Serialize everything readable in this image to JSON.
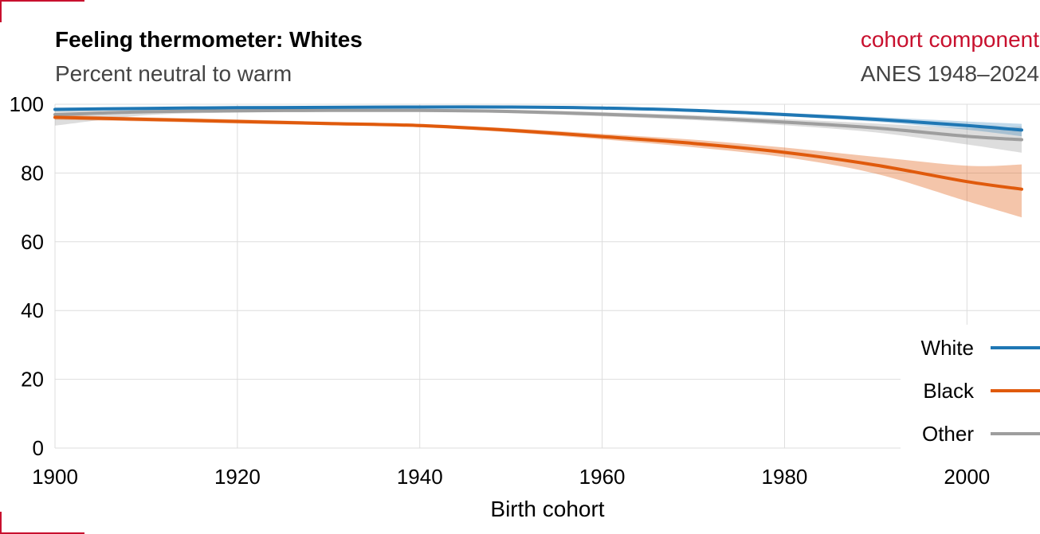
{
  "header": {
    "title": "Feeling thermometer: Whites",
    "subtitle": "Percent neutral to warm",
    "tag": "cohort component",
    "source": "ANES 1948–2024"
  },
  "colors": {
    "accent_red": "#c8102e",
    "White": "#1f77b4",
    "Black": "#e05a0c",
    "Other": "#9e9e9e",
    "grid": "#dddddd"
  },
  "chart_data": {
    "type": "line",
    "title": "Feeling thermometer: Whites",
    "subtitle": "Percent neutral to warm",
    "xlabel": "Birth cohort",
    "ylabel": "",
    "xlim": [
      1900,
      2006
    ],
    "ylim": [
      0,
      100
    ],
    "xticks": [
      1900,
      1920,
      1940,
      1960,
      1980,
      2000
    ],
    "yticks": [
      0,
      20,
      40,
      60,
      80,
      100
    ],
    "grid": true,
    "legend_position": "bottom-right",
    "series": [
      {
        "name": "White",
        "x": [
          1900,
          1910,
          1920,
          1930,
          1940,
          1950,
          1960,
          1970,
          1980,
          1990,
          2000,
          2006
        ],
        "y": [
          98.5,
          98.8,
          99.0,
          99.1,
          99.2,
          99.2,
          98.9,
          98.2,
          97.0,
          95.6,
          93.8,
          92.5
        ],
        "lower": [
          98.0,
          98.5,
          98.7,
          98.9,
          99.0,
          99.0,
          98.6,
          97.8,
          96.5,
          94.9,
          92.6,
          90.7
        ],
        "upper": [
          99.0,
          99.1,
          99.3,
          99.3,
          99.4,
          99.4,
          99.2,
          98.6,
          97.5,
          96.3,
          95.0,
          94.3
        ]
      },
      {
        "name": "Black",
        "x": [
          1900,
          1910,
          1920,
          1930,
          1940,
          1950,
          1960,
          1970,
          1980,
          1990,
          2000,
          2006
        ],
        "y": [
          96.2,
          95.6,
          95.0,
          94.4,
          93.8,
          92.4,
          90.6,
          88.6,
          86.0,
          82.3,
          77.5,
          75.3
        ],
        "lower": [
          95.5,
          95.0,
          94.4,
          93.9,
          93.3,
          91.8,
          89.8,
          87.5,
          84.6,
          79.8,
          71.8,
          67.1
        ],
        "upper": [
          96.9,
          96.2,
          95.6,
          94.9,
          94.3,
          93.0,
          91.4,
          89.7,
          87.4,
          84.7,
          82.1,
          82.5
        ]
      },
      {
        "name": "Other",
        "x": [
          1900,
          1910,
          1920,
          1930,
          1940,
          1950,
          1960,
          1970,
          1980,
          1990,
          2000,
          2006
        ],
        "y": [
          97.0,
          97.8,
          98.1,
          98.2,
          98.2,
          97.9,
          97.1,
          96.1,
          94.8,
          93.1,
          90.7,
          89.7
        ],
        "lower": [
          93.8,
          96.8,
          97.6,
          97.8,
          97.8,
          97.4,
          96.5,
          95.4,
          93.9,
          91.8,
          88.3,
          85.9
        ],
        "upper": [
          99.0,
          98.8,
          98.6,
          98.6,
          98.6,
          98.4,
          97.7,
          96.8,
          95.7,
          94.4,
          93.1,
          93.5
        ]
      }
    ]
  }
}
